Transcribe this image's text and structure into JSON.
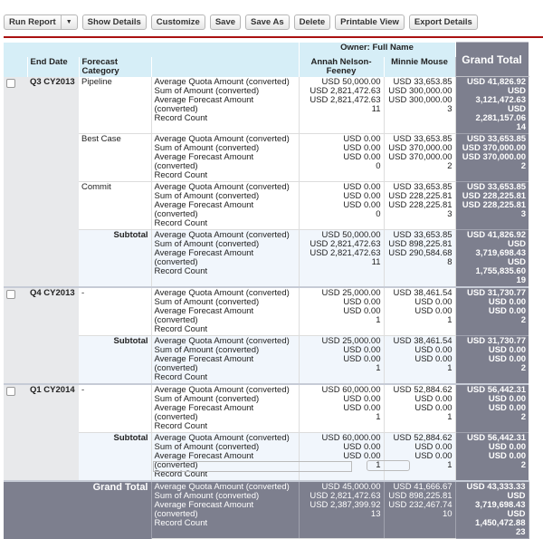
{
  "toolbar": {
    "run_report": "Run Report",
    "show_details": "Show Details",
    "customize": "Customize",
    "save": "Save",
    "save_as": "Save As",
    "delete": "Delete",
    "printable_view": "Printable View",
    "export_details": "Export Details"
  },
  "headers": {
    "owner": "Owner: Full Name",
    "grand_total": "Grand Total",
    "end_date": "End Date",
    "forecast_category": "Forecast Category",
    "col1": "Annah Nelson-Feeney",
    "col2": "Minnie Mouse"
  },
  "measures": [
    "Average Quota Amount (converted)",
    "Sum of Amount (converted)",
    "Average Forecast Amount (converted)",
    "Record Count"
  ],
  "rows": [
    {
      "type": "data",
      "date": "Q3 CY2013",
      "cat": "Pipeline",
      "a": [
        "USD 50,000.00",
        "USD 2,821,472.63",
        "USD 2,821,472.63",
        "11"
      ],
      "m": [
        "USD 33,653.85",
        "USD 300,000.00",
        "USD 300,000.00",
        "3"
      ],
      "g": [
        "USD 41,826.92",
        "USD 3,121,472.63",
        "USD 2,281,157.06",
        "14"
      ]
    },
    {
      "type": "data",
      "date": "",
      "cat": "Best Case",
      "a": [
        "USD 0.00",
        "USD 0.00",
        "USD 0.00",
        "0"
      ],
      "m": [
        "USD 33,653.85",
        "USD 370,000.00",
        "USD 370,000.00",
        "2"
      ],
      "g": [
        "USD 33,653.85",
        "USD 370,000.00",
        "USD 370,000.00",
        "2"
      ]
    },
    {
      "type": "data",
      "date": "",
      "cat": "Commit",
      "a": [
        "USD 0.00",
        "USD 0.00",
        "USD 0.00",
        "0"
      ],
      "m": [
        "USD 33,653.85",
        "USD 228,225.81",
        "USD 228,225.81",
        "3"
      ],
      "g": [
        "USD 33,653.85",
        "USD 228,225.81",
        "USD 228,225.81",
        "3"
      ]
    },
    {
      "type": "sub",
      "cat": "Subtotal",
      "a": [
        "USD 50,000.00",
        "USD 2,821,472.63",
        "USD 2,821,472.63",
        "11"
      ],
      "m": [
        "USD 33,653.85",
        "USD 898,225.81",
        "USD 290,584.68",
        "8"
      ],
      "g": [
        "USD 41,826.92",
        "USD 3,719,698.43",
        "USD 1,755,835.60",
        "19"
      ]
    },
    {
      "type": "data",
      "date": "Q4 CY2013",
      "cat": "-",
      "a": [
        "USD 25,000.00",
        "USD 0.00",
        "USD 0.00",
        "1"
      ],
      "m": [
        "USD 38,461.54",
        "USD 0.00",
        "USD 0.00",
        "1"
      ],
      "g": [
        "USD 31,730.77",
        "USD 0.00",
        "USD 0.00",
        "2"
      ]
    },
    {
      "type": "sub",
      "cat": "Subtotal",
      "a": [
        "USD 25,000.00",
        "USD 0.00",
        "USD 0.00",
        "1"
      ],
      "m": [
        "USD 38,461.54",
        "USD 0.00",
        "USD 0.00",
        "1"
      ],
      "g": [
        "USD 31,730.77",
        "USD 0.00",
        "USD 0.00",
        "2"
      ]
    },
    {
      "type": "data",
      "date": "Q1 CY2014",
      "cat": "-",
      "a": [
        "USD 60,000.00",
        "USD 0.00",
        "USD 0.00",
        "1"
      ],
      "m": [
        "USD 52,884.62",
        "USD 0.00",
        "USD 0.00",
        "1"
      ],
      "g": [
        "USD 56,442.31",
        "USD 0.00",
        "USD 0.00",
        "2"
      ]
    },
    {
      "type": "sub",
      "cat": "Subtotal",
      "a": [
        "USD 60,000.00",
        "USD 0.00",
        "USD 0.00",
        "1"
      ],
      "m": [
        "USD 52,884.62",
        "USD 0.00",
        "USD 0.00",
        "1"
      ],
      "g": [
        "USD 56,442.31",
        "USD 0.00",
        "USD 0.00",
        "2"
      ]
    },
    {
      "type": "grand",
      "cat": "Grand Total",
      "a": [
        "USD 45,000.00",
        "USD 2,821,472.63",
        "USD 2,387,399.92",
        "13"
      ],
      "m": [
        "USD 41,666.67",
        "USD 898,225.81",
        "USD 232,467.74",
        "10"
      ],
      "g": [
        "USD 43,333.33",
        "USD 3,719,698.43",
        "USD 1,450,472.88",
        "23"
      ]
    }
  ]
}
